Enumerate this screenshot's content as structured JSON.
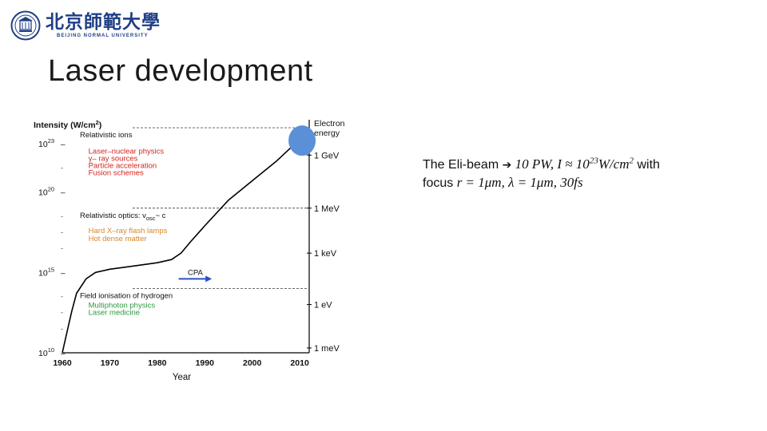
{
  "header": {
    "university_cn": "北京師範大學",
    "university_en": "BEIJING NORMAL UNIVERSITY"
  },
  "slide": {
    "title": "Laser development"
  },
  "chart_data": {
    "type": "line",
    "title": "",
    "ylabel_prefix": "Intensity (W/cm",
    "ylabel_sup": "2",
    "ylabel_suffix": ")",
    "xlabel": "Year",
    "x_ticks": [
      "1960",
      "1970",
      "1980",
      "1990",
      "2000",
      "2010"
    ],
    "xlim": [
      1960,
      2012
    ],
    "ylim_log10": [
      10,
      24.5
    ],
    "y_ticks": [
      {
        "base": "10",
        "exp": "23",
        "log": 23
      },
      {
        "base": "10",
        "exp": "20",
        "log": 20
      },
      {
        "base": "10",
        "exp": "15",
        "log": 15
      },
      {
        "base": "10",
        "exp": "10",
        "log": 10
      }
    ],
    "right_axis_title": [
      "Electron",
      "energy"
    ],
    "right_axis_ticks": [
      {
        "label": "1 GeV",
        "log": 22.3
      },
      {
        "label": "1 MeV",
        "log": 19.0
      },
      {
        "label": "1 keV",
        "log": 16.2
      },
      {
        "label": "1 eV",
        "log": 13.0
      },
      {
        "label": "1 meV",
        "log": 10.3
      }
    ],
    "series": [
      {
        "points": [
          [
            1960,
            10
          ],
          [
            1961,
            11.3
          ],
          [
            1962,
            12.6
          ],
          [
            1963,
            13.7
          ],
          [
            1965,
            14.6
          ],
          [
            1967,
            15.0
          ],
          [
            1970,
            15.2
          ],
          [
            1975,
            15.4
          ],
          [
            1980,
            15.6
          ],
          [
            1983,
            15.8
          ],
          [
            1985,
            16.2
          ],
          [
            1987,
            16.9
          ],
          [
            1990,
            17.9
          ],
          [
            1995,
            19.5
          ],
          [
            2000,
            20.7
          ],
          [
            2005,
            21.9
          ],
          [
            2009,
            23.0
          ]
        ]
      }
    ],
    "dashed_levels": [
      {
        "label": "Relativistic ions",
        "log": 24.0
      },
      {
        "label": "Relativistic optics: v",
        "sub": "osc",
        "suffix": "~ c",
        "log": 19.0
      },
      {
        "label": "Field ionisation of hydrogen",
        "log": 14.0
      }
    ],
    "annotations": [
      {
        "text": "Laser–nuclear physics",
        "color": "#d6231f",
        "x": 1966,
        "log": 22.6
      },
      {
        "text": "γ– ray sources",
        "color": "#d6231f",
        "x": 1966,
        "log": 22.15
      },
      {
        "text": "Particle acceleration",
        "color": "#d6231f",
        "x": 1966,
        "log": 21.7
      },
      {
        "text": "Fusion schemes",
        "color": "#d6231f",
        "x": 1966,
        "log": 21.25
      },
      {
        "text": "Hard X–ray flash lamps",
        "color": "#d9862b",
        "x": 1966,
        "log": 17.65
      },
      {
        "text": "Hot dense matter",
        "color": "#d9862b",
        "x": 1966,
        "log": 17.15
      },
      {
        "text": "Multiphoton physics",
        "color": "#2b9a3c",
        "x": 1966,
        "log": 13.0
      },
      {
        "text": "Laser medicine",
        "color": "#2b9a3c",
        "x": 1966,
        "log": 12.55
      }
    ],
    "cpa": {
      "label": "CPA",
      "color": "#2a4fc7",
      "x_start": 1984.5,
      "x_end": 1991.5,
      "log": 14.6
    },
    "marker": {
      "color": "#5b8fd8",
      "x": 2010.5,
      "log": 23.3
    }
  },
  "eli": {
    "line1_text": "The Eli-beam ",
    "arrow": "➔",
    "line1_math_a": " 10 PW, I ≈ 10",
    "line1_math_sup": "23",
    "line1_math_b": "W/cm",
    "line1_math_sup2": "2",
    "line1_text_end": " with",
    "line2_text": "focus ",
    "line2_math": "r = 1μm, λ = 1μm, 30fs"
  }
}
